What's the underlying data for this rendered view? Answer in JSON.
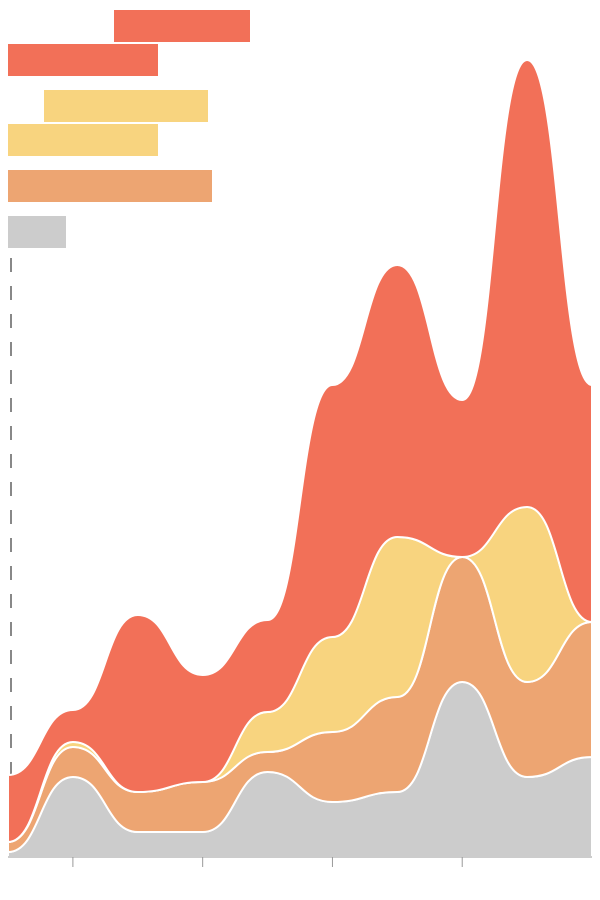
{
  "chart_data": {
    "type": "streamgraph",
    "x": [
      0,
      1,
      2,
      3,
      4,
      5,
      6,
      7,
      8,
      9
    ],
    "xlim": [
      0,
      9
    ],
    "xticks": [
      1,
      3,
      5,
      7
    ],
    "ylim": [
      0,
      800
    ],
    "series": [
      {
        "color": "#cccccc",
        "values": [
          5,
          80,
          25,
          25,
          85,
          55,
          65,
          175,
          80,
          100
        ]
      },
      {
        "color": "#eda572",
        "values": [
          10,
          30,
          40,
          50,
          20,
          70,
          95,
          125,
          95,
          135
        ]
      },
      {
        "color": "#f8d47f",
        "values": [
          0,
          5,
          0,
          0,
          40,
          95,
          160,
          0,
          175,
          0
        ]
      },
      {
        "color": "#f27058",
        "values": [
          67,
          32,
          177,
          107,
          92,
          252,
          272,
          157,
          447,
          237
        ]
      }
    ]
  }
}
